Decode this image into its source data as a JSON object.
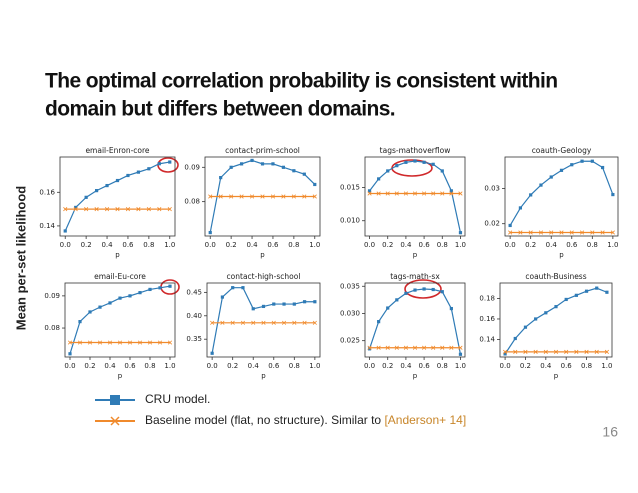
{
  "slide": {
    "title": [
      "The optimal correlation probability is consistent within",
      "domain but differs between domains."
    ],
    "ylabel": "Mean per-set likelihood",
    "legend": [
      {
        "name": "CRU model.",
        "color": "#2f7bb6"
      },
      {
        "name": "Baseline model (flat, no structure). Similar to ",
        "color": "#f08a2c"
      }
    ],
    "citation": "[Anderson+ 14]",
    "page": "16"
  },
  "chart_data": [
    {
      "type": "line",
      "title": "email-Enron-core",
      "xlabel": "p",
      "x": [
        0,
        0.1,
        0.2,
        0.3,
        0.4,
        0.5,
        0.6,
        0.7,
        0.8,
        0.9,
        1
      ],
      "xlim": [
        -0.05,
        1.05
      ],
      "xticks": [
        {
          "value": 0,
          "label": "0.0"
        },
        0.2,
        0.4,
        0.6,
        0.8,
        {
          "value": 1,
          "label": "1.0"
        }
      ],
      "ylim": [
        0.134,
        0.181
      ],
      "yticks": [
        0.14,
        0.16
      ],
      "series": [
        {
          "color": "#2f7bb6",
          "marker": "square",
          "values": [
            0.137,
            0.151,
            0.157,
            0.161,
            0.164,
            0.167,
            0.17,
            0.172,
            0.174,
            0.177,
            0.178
          ]
        },
        {
          "color": "#f08a2c",
          "marker": "x",
          "values": [
            0.15,
            0.15,
            0.15,
            0.15,
            0.15,
            0.15,
            0.15,
            0.15,
            0.15,
            0.15,
            0.15
          ]
        }
      ]
    },
    {
      "type": "line",
      "title": "contact-prim-school",
      "xlabel": "p",
      "x": [
        0,
        0.1,
        0.2,
        0.3,
        0.4,
        0.5,
        0.6,
        0.7,
        0.8,
        0.9,
        1
      ],
      "xlim": [
        -0.05,
        1.05
      ],
      "xticks": [
        {
          "value": 0,
          "label": "0.0"
        },
        0.2,
        0.4,
        0.6,
        0.8,
        {
          "value": 1,
          "label": "1.0"
        }
      ],
      "ylim": [
        0.07,
        0.093
      ],
      "yticks": [
        0.08,
        0.09
      ],
      "series": [
        {
          "color": "#2f7bb6",
          "marker": "square",
          "values": [
            0.071,
            0.087,
            0.09,
            0.091,
            0.092,
            0.091,
            0.091,
            0.09,
            0.089,
            0.088,
            0.085
          ]
        },
        {
          "color": "#f08a2c",
          "marker": "x",
          "values": [
            0.0815,
            0.0815,
            0.0815,
            0.0815,
            0.0815,
            0.0815,
            0.0815,
            0.0815,
            0.0815,
            0.0815,
            0.0815
          ]
        }
      ]
    },
    {
      "type": "line",
      "title": "tags-mathoverflow",
      "xlabel": "p",
      "x": [
        0,
        0.1,
        0.2,
        0.3,
        0.4,
        0.5,
        0.6,
        0.7,
        0.8,
        0.9,
        1
      ],
      "xlim": [
        -0.05,
        1.05
      ],
      "xticks": [
        {
          "value": 0,
          "label": "0.0"
        },
        0.2,
        0.4,
        0.6,
        0.8,
        {
          "value": 1,
          "label": "1.0"
        }
      ],
      "ylim": [
        0.0077,
        0.0196
      ],
      "yticks": [
        {
          "value": 0.01,
          "label": "0.010"
        },
        0.015
      ],
      "series": [
        {
          "color": "#2f7bb6",
          "marker": "square",
          "values": [
            0.0145,
            0.0163,
            0.0175,
            0.0183,
            0.0188,
            0.019,
            0.0188,
            0.0185,
            0.0175,
            0.0145,
            0.0082
          ]
        },
        {
          "color": "#f08a2c",
          "marker": "x",
          "values": [
            0.0141,
            0.0141,
            0.0141,
            0.0141,
            0.0141,
            0.0141,
            0.0141,
            0.0141,
            0.0141,
            0.0141,
            0.0141
          ]
        }
      ]
    },
    {
      "type": "line",
      "title": "coauth-Geology",
      "xlabel": "p",
      "x": [
        0,
        0.1,
        0.2,
        0.3,
        0.4,
        0.5,
        0.6,
        0.7,
        0.8,
        0.9,
        1
      ],
      "xlim": [
        -0.05,
        1.05
      ],
      "xticks": [
        {
          "value": 0,
          "label": "0.0"
        },
        0.2,
        0.4,
        0.6,
        0.8,
        {
          "value": 1,
          "label": "1.0"
        }
      ],
      "ylim": [
        0.0165,
        0.039
      ],
      "yticks": [
        0.02,
        0.03
      ],
      "series": [
        {
          "color": "#2f7bb6",
          "marker": "square",
          "values": [
            0.0195,
            0.0245,
            0.0282,
            0.031,
            0.0333,
            0.0352,
            0.0368,
            0.0378,
            0.0378,
            0.036,
            0.0283
          ]
        },
        {
          "color": "#f08a2c",
          "marker": "x",
          "values": [
            0.0175,
            0.0175,
            0.0175,
            0.0175,
            0.0175,
            0.0175,
            0.0175,
            0.0175,
            0.0175,
            0.0175,
            0.0175
          ]
        }
      ]
    },
    {
      "type": "line",
      "title": "email-Eu-core",
      "xlabel": "p",
      "x": [
        0,
        0.1,
        0.2,
        0.3,
        0.4,
        0.5,
        0.6,
        0.7,
        0.8,
        0.9,
        1
      ],
      "xlim": [
        -0.05,
        1.05
      ],
      "xticks": [
        {
          "value": 0,
          "label": "0.0"
        },
        0.2,
        0.4,
        0.6,
        0.8,
        {
          "value": 1,
          "label": "1.0"
        }
      ],
      "ylim": [
        0.071,
        0.094
      ],
      "yticks": [
        0.08,
        0.09
      ],
      "series": [
        {
          "color": "#2f7bb6",
          "marker": "square",
          "values": [
            0.072,
            0.082,
            0.085,
            0.0865,
            0.0878,
            0.0893,
            0.09,
            0.091,
            0.092,
            0.0925,
            0.093
          ]
        },
        {
          "color": "#f08a2c",
          "marker": "x",
          "values": [
            0.0755,
            0.0755,
            0.0755,
            0.0755,
            0.0755,
            0.0755,
            0.0755,
            0.0755,
            0.0755,
            0.0755,
            0.0755
          ]
        }
      ]
    },
    {
      "type": "line",
      "title": "contact-high-school",
      "xlabel": "p",
      "x": [
        0,
        0.1,
        0.2,
        0.3,
        0.4,
        0.5,
        0.6,
        0.7,
        0.8,
        0.9,
        1
      ],
      "xlim": [
        -0.05,
        1.05
      ],
      "xticks": [
        {
          "value": 0,
          "label": "0.0"
        },
        0.2,
        0.4,
        0.6,
        0.8,
        {
          "value": 1,
          "label": "1.0"
        }
      ],
      "ylim": [
        0.312,
        0.47
      ],
      "yticks": [
        0.35,
        {
          "value": 0.4,
          "label": "0.40"
        },
        0.45
      ],
      "series": [
        {
          "color": "#2f7bb6",
          "marker": "square",
          "values": [
            0.32,
            0.44,
            0.46,
            0.46,
            0.415,
            0.42,
            0.425,
            0.425,
            0.425,
            0.43,
            0.43
          ]
        },
        {
          "color": "#f08a2c",
          "marker": "x",
          "values": [
            0.385,
            0.385,
            0.385,
            0.385,
            0.385,
            0.385,
            0.385,
            0.385,
            0.385,
            0.385,
            0.385
          ]
        }
      ]
    },
    {
      "type": "line",
      "title": "tags-math-sx",
      "xlabel": "p",
      "x": [
        0,
        0.1,
        0.2,
        0.3,
        0.4,
        0.5,
        0.6,
        0.7,
        0.8,
        0.9,
        1
      ],
      "xlim": [
        -0.05,
        1.05
      ],
      "xticks": [
        {
          "value": 0,
          "label": "0.0"
        },
        0.2,
        0.4,
        0.6,
        0.8,
        {
          "value": 1,
          "label": "1.0"
        }
      ],
      "ylim": [
        0.022,
        0.0356
      ],
      "yticks": [
        0.025,
        {
          "value": 0.03,
          "label": "0.030"
        },
        0.035
      ],
      "series": [
        {
          "color": "#2f7bb6",
          "marker": "square",
          "values": [
            0.0235,
            0.0285,
            0.031,
            0.0325,
            0.0337,
            0.0343,
            0.0345,
            0.0344,
            0.034,
            0.0309,
            0.0225
          ]
        },
        {
          "color": "#f08a2c",
          "marker": "x",
          "values": [
            0.0237,
            0.0237,
            0.0237,
            0.0237,
            0.0237,
            0.0237,
            0.0237,
            0.0237,
            0.0237,
            0.0237,
            0.0237
          ]
        }
      ]
    },
    {
      "type": "line",
      "title": "coauth-Business",
      "xlabel": "p",
      "x": [
        0,
        0.1,
        0.2,
        0.3,
        0.4,
        0.5,
        0.6,
        0.7,
        0.8,
        0.9,
        1
      ],
      "xlim": [
        -0.05,
        1.05
      ],
      "xticks": [
        {
          "value": 0,
          "label": "0.0"
        },
        0.2,
        0.4,
        0.6,
        0.8,
        {
          "value": 1,
          "label": "1.0"
        }
      ],
      "ylim": [
        0.123,
        0.195
      ],
      "yticks": [
        0.14,
        0.16,
        0.18
      ],
      "series": [
        {
          "color": "#2f7bb6",
          "marker": "square",
          "values": [
            0.126,
            0.141,
            0.152,
            0.16,
            0.166,
            0.172,
            0.179,
            0.183,
            0.187,
            0.19,
            0.186
          ]
        },
        {
          "color": "#f08a2c",
          "marker": "x",
          "values": [
            0.128,
            0.128,
            0.128,
            0.128,
            0.128,
            0.128,
            0.128,
            0.128,
            0.128,
            0.128,
            0.128
          ]
        }
      ]
    }
  ]
}
